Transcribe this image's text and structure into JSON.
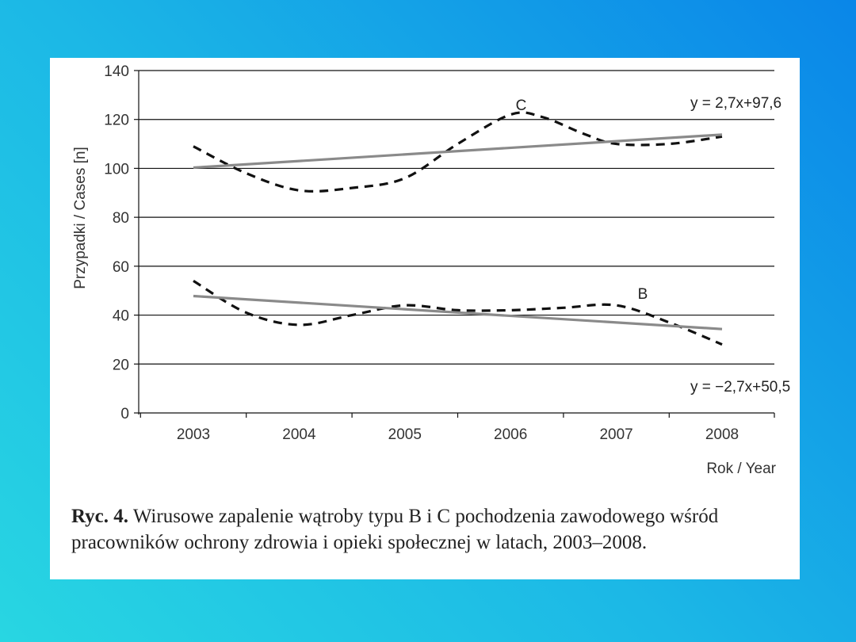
{
  "chart_data": {
    "type": "line",
    "xlabel": "Rok / Year",
    "ylabel": "Przypadki / Cases [n]",
    "ylim": [
      0,
      140
    ],
    "yticks": [
      0,
      20,
      40,
      60,
      80,
      100,
      120,
      140
    ],
    "x": [
      2003,
      2004,
      2005,
      2006,
      2007,
      2008
    ],
    "x_tick_labels": [
      "2003",
      "2004",
      "2005",
      "2006",
      "2007",
      "2008"
    ],
    "grid": "horizontal",
    "series": [
      {
        "name": "C",
        "style": "dashed",
        "points": [
          {
            "x": 2003.0,
            "y": 109
          },
          {
            "x": 2003.5,
            "y": 98
          },
          {
            "x": 2004.0,
            "y": 91
          },
          {
            "x": 2004.5,
            "y": 92
          },
          {
            "x": 2005.0,
            "y": 96
          },
          {
            "x": 2005.5,
            "y": 110
          },
          {
            "x": 2006.0,
            "y": 122
          },
          {
            "x": 2006.3,
            "y": 121
          },
          {
            "x": 2006.7,
            "y": 114
          },
          {
            "x": 2007.0,
            "y": 110
          },
          {
            "x": 2007.5,
            "y": 110
          },
          {
            "x": 2008.0,
            "y": 113
          }
        ]
      },
      {
        "name": "C trend",
        "style": "solid",
        "equation": "y = 2,7x+97,6",
        "points": [
          {
            "x": 2003,
            "y": 100.3
          },
          {
            "x": 2008,
            "y": 113.8
          }
        ]
      },
      {
        "name": "B",
        "style": "dashed",
        "points": [
          {
            "x": 2003.0,
            "y": 54
          },
          {
            "x": 2003.5,
            "y": 41
          },
          {
            "x": 2004.0,
            "y": 36
          },
          {
            "x": 2004.5,
            "y": 40
          },
          {
            "x": 2005.0,
            "y": 44
          },
          {
            "x": 2005.5,
            "y": 42
          },
          {
            "x": 2006.0,
            "y": 42
          },
          {
            "x": 2006.5,
            "y": 43
          },
          {
            "x": 2007.0,
            "y": 44
          },
          {
            "x": 2007.5,
            "y": 37
          },
          {
            "x": 2008.0,
            "y": 28
          }
        ]
      },
      {
        "name": "B trend",
        "style": "solid",
        "equation": "y = −2,7x+50,5",
        "points": [
          {
            "x": 2003,
            "y": 47.8
          },
          {
            "x": 2008,
            "y": 34.3
          }
        ]
      }
    ],
    "annotations": [
      {
        "text": "C",
        "x": 2006.1,
        "y": 126
      },
      {
        "text": "B",
        "x": 2007.25,
        "y": 49
      },
      {
        "text": "y = 2,7x+97,6",
        "x": 2007.7,
        "y": 127
      },
      {
        "text": "y = −2,7x+50,5",
        "x": 2007.7,
        "y": 11
      }
    ]
  },
  "caption": {
    "label": "Ryc. 4.",
    "text": " Wirusowe zapalenie wątroby typu B i C pochodzenia zawodowego wśród pracowników ochrony zdrowia i opieki społecznej w latach, 2003–2008."
  }
}
